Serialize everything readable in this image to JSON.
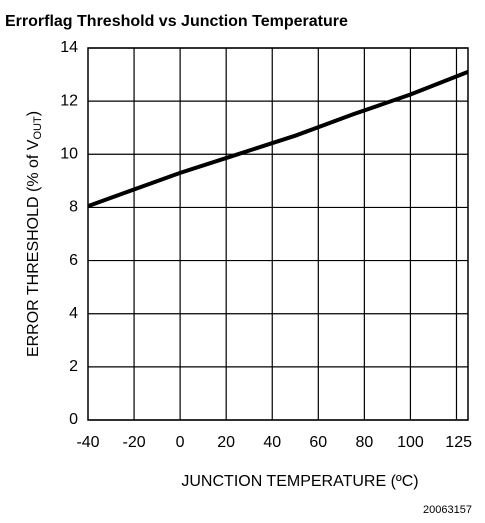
{
  "chart_data": {
    "type": "line",
    "title": "Errorflag Threshold vs Junction Temperature",
    "y_label": "ERROR THRESHOLD (% of V",
    "y_label_sub": "OUT",
    "y_label_end": ")",
    "x_label": "JUNCTION TEMPERATURE (ºC)",
    "figure_id": "20063157",
    "x": [
      -40,
      0,
      25,
      50,
      75,
      100,
      125
    ],
    "series": [
      {
        "color": "#000000",
        "values": [
          8.05,
          9.3,
          10.0,
          10.7,
          11.5,
          12.25,
          13.1
        ]
      }
    ],
    "xlim": [
      -40,
      125
    ],
    "xticks": [
      -40,
      -20,
      0,
      20,
      40,
      60,
      80,
      100,
      125
    ],
    "x_gridlines": [
      -20,
      0,
      20,
      40,
      60,
      80,
      100,
      120
    ],
    "ylim": [
      0,
      14
    ],
    "yticks": [
      0,
      2,
      4,
      6,
      8,
      10,
      12,
      14
    ],
    "grid": true
  }
}
